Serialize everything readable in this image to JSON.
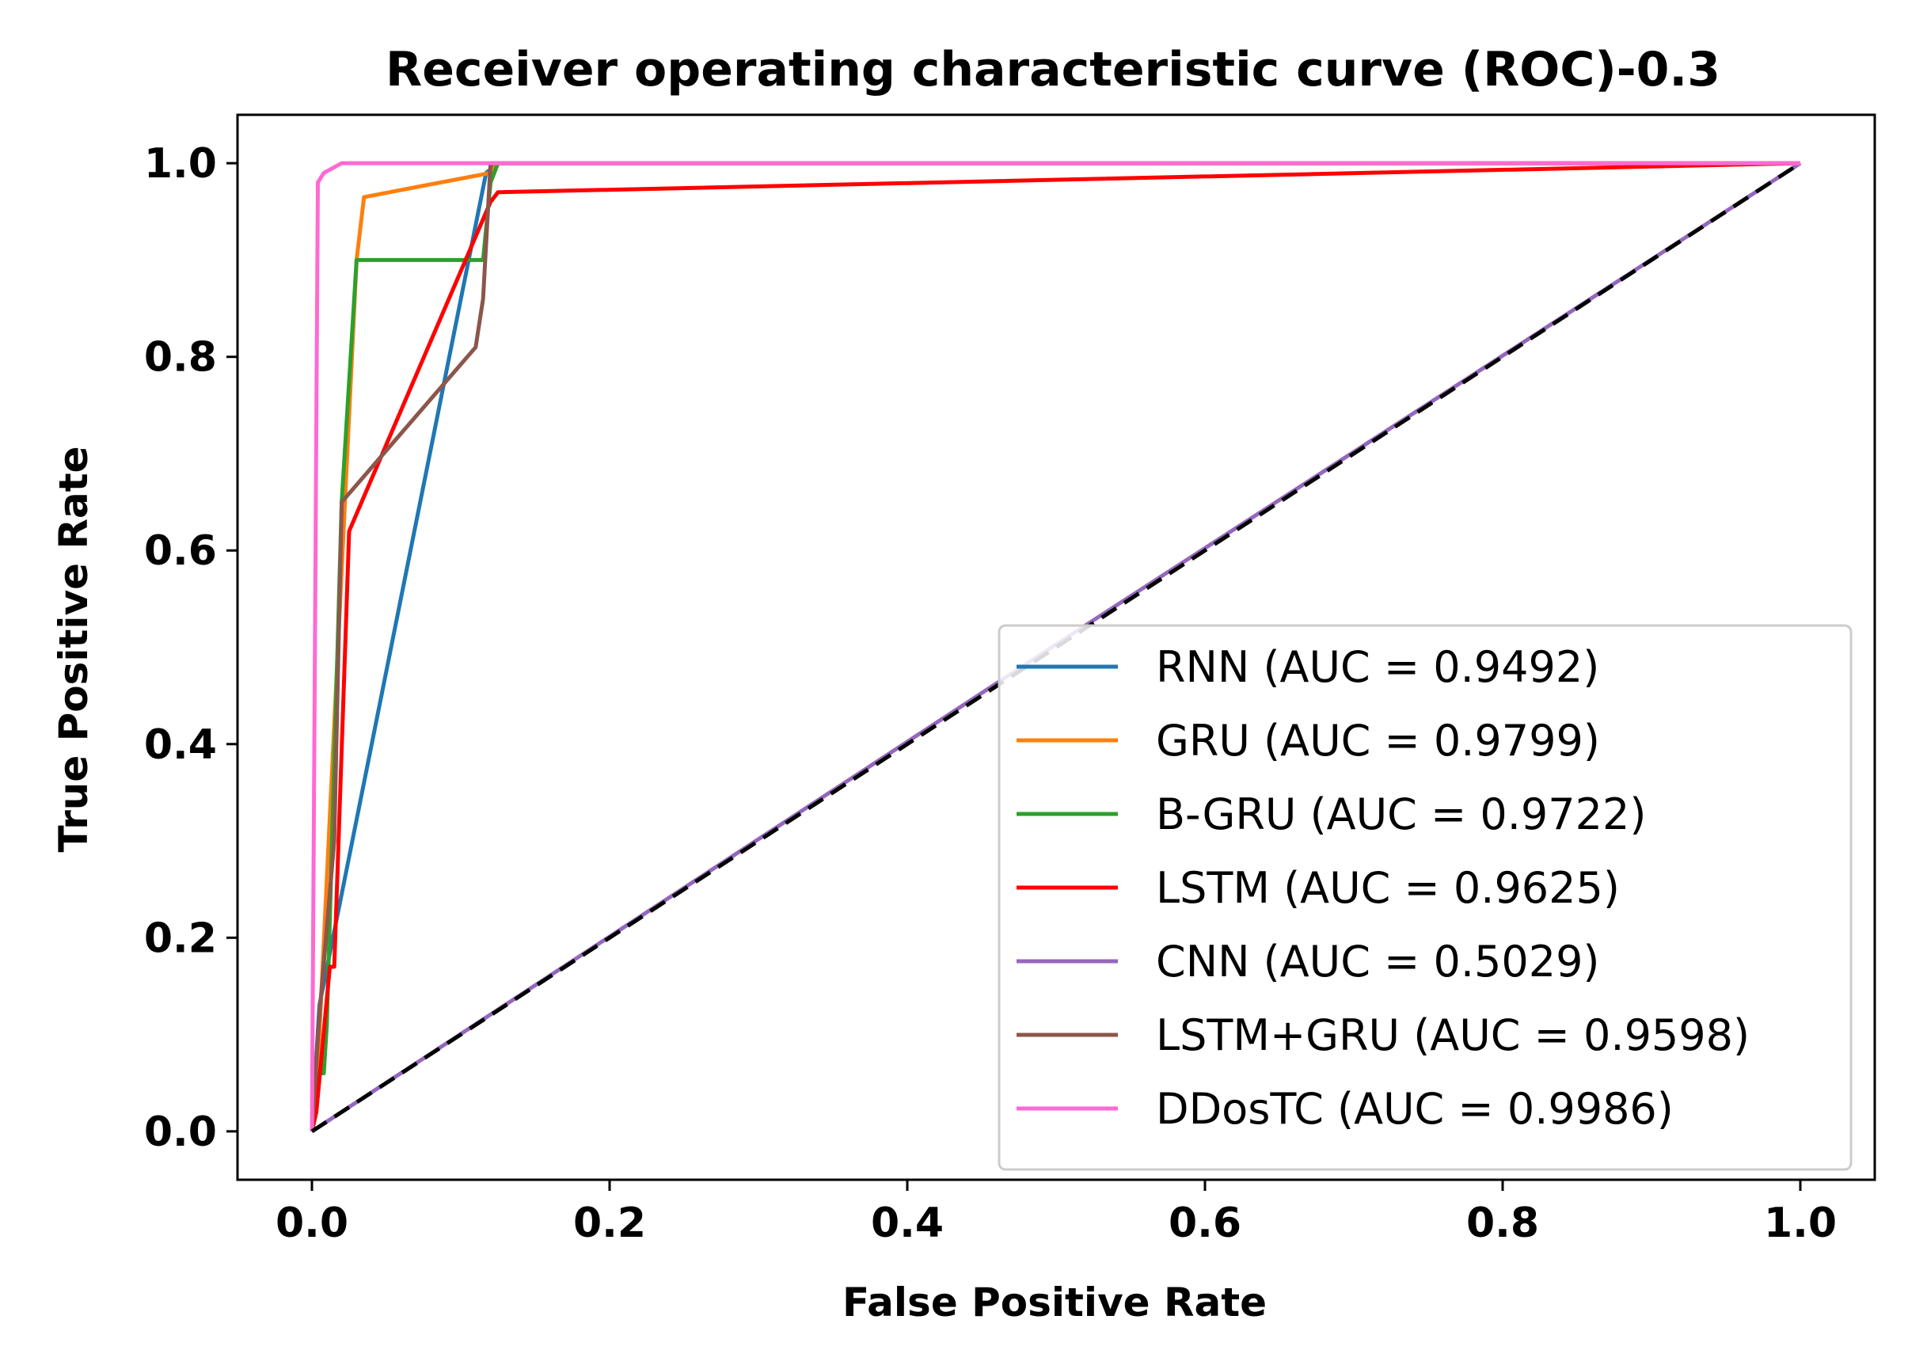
{
  "chart_data": {
    "type": "line",
    "title": "Receiver operating characteristic curve (ROC)-0.3",
    "xlabel": "False Positive Rate",
    "ylabel": "True Positive Rate",
    "xlim": [
      -0.05,
      1.05
    ],
    "ylim": [
      -0.05,
      1.05
    ],
    "xticks": [
      0.0,
      0.2,
      0.4,
      0.6,
      0.8,
      1.0
    ],
    "yticks": [
      0.0,
      0.2,
      0.4,
      0.6,
      0.8,
      1.0
    ],
    "xtick_labels": [
      "0.0",
      "0.2",
      "0.4",
      "0.6",
      "0.8",
      "1.0"
    ],
    "ytick_labels": [
      "0.0",
      "0.2",
      "0.4",
      "0.6",
      "0.8",
      "1.0"
    ],
    "legend_position": "lower-right",
    "grid": false,
    "reference_line": {
      "x": [
        0,
        1
      ],
      "y": [
        0,
        1
      ],
      "color": "#000000",
      "style": "dashed"
    },
    "series": [
      {
        "name": "RNN (AUC = 0.9492)",
        "color": "#1f77b4",
        "x": [
          0,
          0.005,
          0.117,
          0.125,
          1.0
        ],
        "y": [
          0,
          0.13,
          0.99,
          1.0,
          1.0
        ]
      },
      {
        "name": "GRU (AUC = 0.9799)",
        "color": "#ff7f0e",
        "x": [
          0,
          0.005,
          0.03,
          0.035,
          0.12,
          0.125,
          1.0
        ],
        "y": [
          0,
          0.1,
          0.9,
          0.965,
          0.99,
          1.0,
          1.0
        ]
      },
      {
        "name": "B-GRU (AUC = 0.9722)",
        "color": "#2ca02c",
        "x": [
          0,
          0.004,
          0.008,
          0.01,
          0.02,
          0.03,
          0.115,
          0.12,
          0.125,
          1.0
        ],
        "y": [
          0,
          0.06,
          0.06,
          0.11,
          0.65,
          0.9,
          0.9,
          0.98,
          1.0,
          1.0
        ]
      },
      {
        "name": "LSTM (AUC = 0.9625)",
        "color": "#ff0000",
        "x": [
          0,
          0.003,
          0.012,
          0.015,
          0.025,
          0.12,
          0.125,
          1.0
        ],
        "y": [
          0,
          0.02,
          0.17,
          0.17,
          0.62,
          0.96,
          0.97,
          1.0
        ]
      },
      {
        "name": "CNN (AUC = 0.5029)",
        "color": "#9467bd",
        "x": [
          0,
          0.5,
          1.0
        ],
        "y": [
          0,
          0.503,
          1.0
        ]
      },
      {
        "name": "LSTM+GRU (AUC = 0.9598)",
        "color": "#8c564b",
        "x": [
          0,
          0.005,
          0.015,
          0.02,
          0.11,
          0.115,
          0.12,
          1.0
        ],
        "y": [
          0,
          0.12,
          0.3,
          0.65,
          0.81,
          0.86,
          1.0,
          1.0
        ]
      },
      {
        "name": "DDosTC (AUC = 0.9986)",
        "color": "#ff69d4",
        "x": [
          0,
          0.002,
          0.004,
          0.008,
          0.02,
          0.05,
          0.1,
          0.13,
          1.0
        ],
        "y": [
          0,
          0.5,
          0.98,
          0.99,
          1.0,
          1.0,
          1.0,
          1.0,
          1.0
        ]
      }
    ]
  }
}
